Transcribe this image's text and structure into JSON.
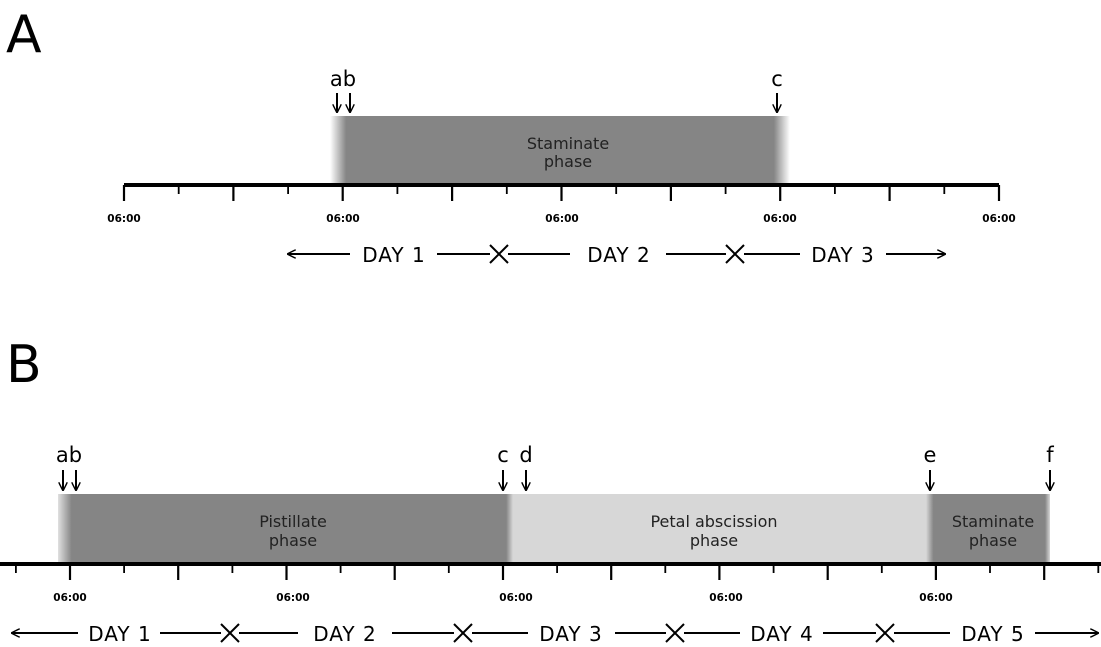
{
  "panels": [
    {
      "id": "A",
      "label": "A",
      "markers": [
        {
          "text": "ab"
        },
        {
          "text": "c"
        }
      ],
      "phases": [
        {
          "line1": "Staminate",
          "line2": "phase",
          "color": "#858585"
        }
      ],
      "ticks": [
        "06:00",
        "06:00",
        "06:00",
        "06:00",
        "06:00"
      ],
      "days": [
        "DAY 1",
        "DAY 2",
        "DAY 3"
      ]
    },
    {
      "id": "B",
      "label": "B",
      "markers": [
        {
          "text": "ab"
        },
        {
          "text": "c"
        },
        {
          "text": "d"
        },
        {
          "text": "e"
        },
        {
          "text": "f"
        }
      ],
      "phases": [
        {
          "line1": "Pistillate",
          "line2": "phase",
          "color": "#858585"
        },
        {
          "line1": "Petal abscission",
          "line2": "phase",
          "color": "#d7d7d7"
        },
        {
          "line1": "Staminate",
          "line2": "phase",
          "color": "#858585"
        }
      ],
      "ticks": [
        "06:00",
        "06:00",
        "06:00",
        "06:00",
        "06:00"
      ],
      "days": [
        "DAY 1",
        "DAY 2",
        "DAY 3",
        "DAY 4",
        "DAY 5"
      ]
    }
  ]
}
